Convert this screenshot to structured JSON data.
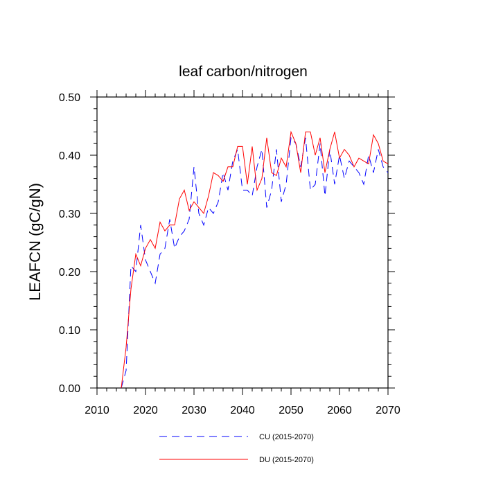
{
  "chart_data": {
    "type": "line",
    "title": "leaf carbon/nitrogen",
    "xlabel": "",
    "ylabel": "LEAFCN  (gC/gN)",
    "xlim": [
      2010,
      2070
    ],
    "ylim": [
      0.0,
      0.5
    ],
    "x_ticks": [
      2010,
      2020,
      2030,
      2040,
      2050,
      2060,
      2070
    ],
    "x_tick_labels": [
      "2010",
      "2020",
      "2030",
      "2040",
      "2050",
      "2060",
      "2070"
    ],
    "y_ticks": [
      0.0,
      0.1,
      0.2,
      0.3,
      0.4,
      0.5
    ],
    "y_tick_labels": [
      "0.00",
      "0.10",
      "0.20",
      "0.30",
      "0.40",
      "0.50"
    ],
    "x": [
      2015,
      2016,
      2017,
      2018,
      2019,
      2020,
      2021,
      2022,
      2023,
      2024,
      2025,
      2026,
      2027,
      2028,
      2029,
      2030,
      2031,
      2032,
      2033,
      2034,
      2035,
      2036,
      2037,
      2038,
      2039,
      2040,
      2041,
      2042,
      2043,
      2044,
      2045,
      2046,
      2047,
      2048,
      2049,
      2050,
      2051,
      2052,
      2053,
      2054,
      2055,
      2056,
      2057,
      2058,
      2059,
      2060,
      2061,
      2062,
      2063,
      2064,
      2065,
      2066,
      2067,
      2068,
      2069,
      2070
    ],
    "series": [
      {
        "name": "CU (2015-2070)",
        "color": "#0000ff",
        "style": "dashed",
        "values": [
          0.0,
          0.03,
          0.21,
          0.2,
          0.28,
          0.22,
          0.2,
          0.18,
          0.23,
          0.24,
          0.29,
          0.24,
          0.26,
          0.27,
          0.29,
          0.38,
          0.3,
          0.28,
          0.31,
          0.3,
          0.32,
          0.37,
          0.34,
          0.39,
          0.41,
          0.34,
          0.34,
          0.33,
          0.38,
          0.41,
          0.31,
          0.34,
          0.41,
          0.32,
          0.35,
          0.43,
          0.42,
          0.38,
          0.43,
          0.34,
          0.35,
          0.42,
          0.33,
          0.41,
          0.35,
          0.4,
          0.36,
          0.39,
          0.38,
          0.37,
          0.35,
          0.4,
          0.37,
          0.41,
          0.38,
          0.37
        ]
      },
      {
        "name": "DU (2015-2070)",
        "color": "#ff0000",
        "style": "solid",
        "values": [
          0.0,
          0.07,
          0.17,
          0.23,
          0.21,
          0.24,
          0.255,
          0.24,
          0.285,
          0.27,
          0.28,
          0.28,
          0.325,
          0.34,
          0.305,
          0.32,
          0.31,
          0.3,
          0.33,
          0.37,
          0.365,
          0.355,
          0.38,
          0.38,
          0.415,
          0.415,
          0.35,
          0.415,
          0.34,
          0.36,
          0.43,
          0.37,
          0.365,
          0.395,
          0.38,
          0.44,
          0.42,
          0.37,
          0.44,
          0.44,
          0.4,
          0.43,
          0.37,
          0.41,
          0.44,
          0.395,
          0.41,
          0.4,
          0.38,
          0.395,
          0.39,
          0.385,
          0.435,
          0.42,
          0.39,
          0.385
        ]
      }
    ],
    "legend": {
      "placement": "bottom",
      "entries": [
        "CU (2015-2070)",
        "DU (2015-2070)"
      ]
    }
  }
}
